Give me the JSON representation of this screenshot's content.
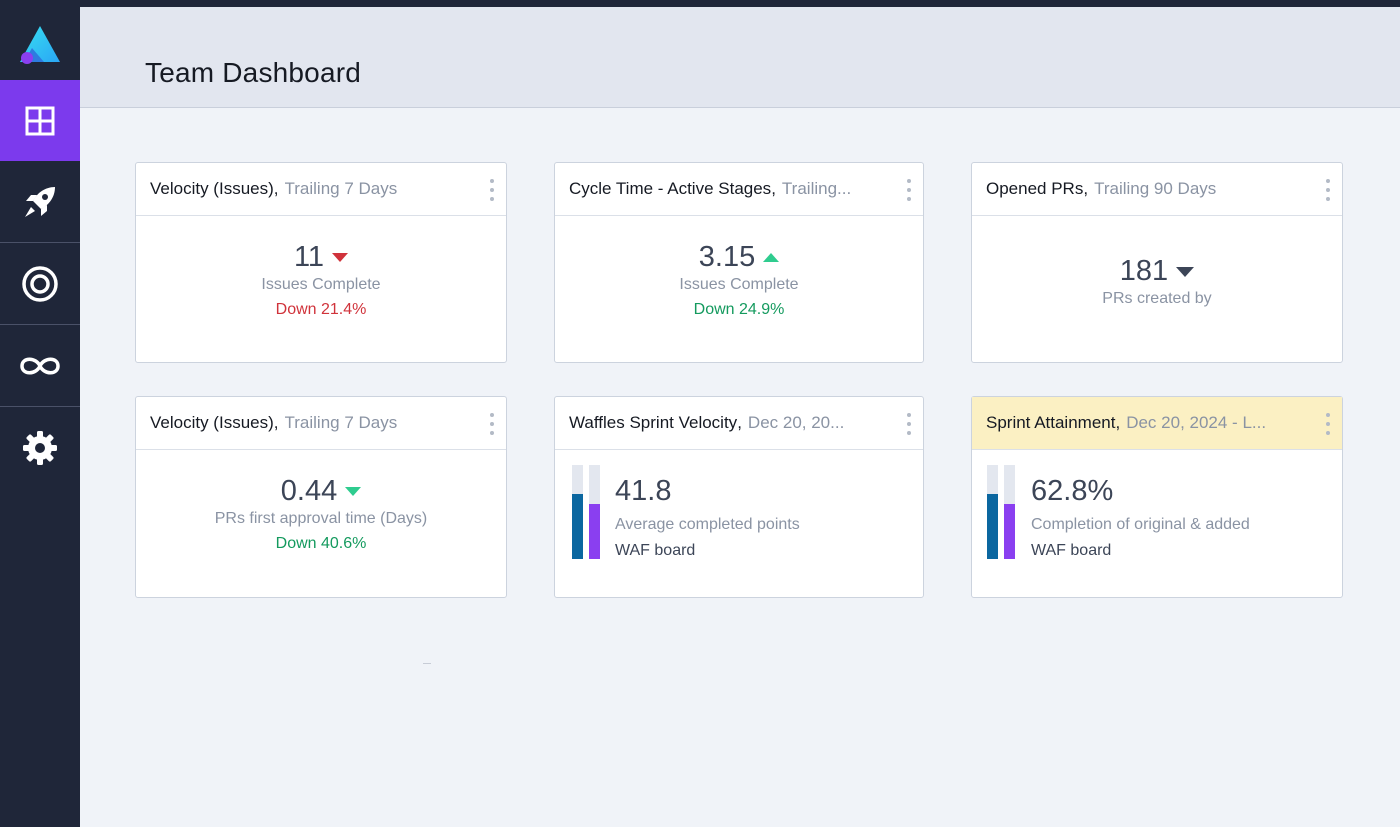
{
  "sidebar": {
    "items": [
      {
        "icon": "logo-icon"
      },
      {
        "icon": "dashboard-grid-icon",
        "active": true
      },
      {
        "icon": "rocket-icon"
      },
      {
        "icon": "target-icon"
      },
      {
        "icon": "loop-icon"
      },
      {
        "icon": "gear-icon"
      }
    ]
  },
  "header": {
    "title": "Team Dashboard"
  },
  "cards": [
    {
      "title": "Velocity (Issues)",
      "subtitle": "Trailing 7 Days",
      "value": "11",
      "trend": "down-red",
      "label": "Issues Complete",
      "change": "Down 21.4%",
      "change_color": "#d0333b"
    },
    {
      "title": "Cycle Time - Active Stages",
      "subtitle": "Trailing...",
      "value": "3.15",
      "trend": "up-green",
      "label": "Issues Complete",
      "change": "Down 24.9%",
      "change_color": "#149a5e"
    },
    {
      "title": "Opened PRs",
      "subtitle": "Trailing 90 Days",
      "value": "181",
      "trend": "down-dark",
      "label": "PRs created by"
    },
    {
      "title": "Velocity (Issues)",
      "subtitle": "Trailing 7 Days",
      "value": "0.44",
      "trend": "down-green",
      "label": "PRs first approval time (Days)",
      "change": "Down 40.6%",
      "change_color": "#149a5e"
    },
    {
      "title": "Waffles Sprint Velocity",
      "subtitle": "Dec 20, 20...",
      "value": "41.8",
      "label": "Average completed points",
      "board": "WAF board",
      "bar_levels": [
        0.69,
        0.58
      ]
    },
    {
      "title": "Sprint Attainment",
      "subtitle": "Dec 20, 2024 - L...",
      "value": "62.8%",
      "value_color": "#cf7611",
      "label": "Completion of original & added",
      "board": "WAF board",
      "highlight_color": "#fbf0c3",
      "bar_levels": [
        0.69,
        0.58
      ]
    }
  ],
  "colors": {
    "sidebar_bg": "#1f2639",
    "active_accent": "#7c3aed",
    "bar_blue": "#0b67a0",
    "bar_purple": "#8a3ff0"
  }
}
